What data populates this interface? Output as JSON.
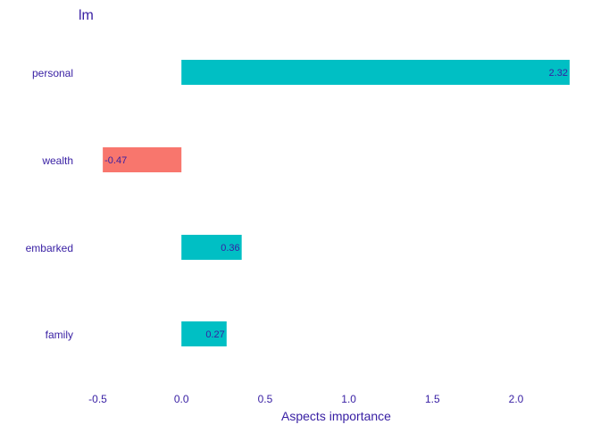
{
  "chart_data": {
    "type": "bar",
    "orientation": "horizontal",
    "title": "lm",
    "xlabel": "Aspects importance",
    "ylabel": "",
    "xlim": [
      -0.5,
      2.32
    ],
    "x_ticks": [
      -0.5,
      0.0,
      0.5,
      1.0,
      1.5,
      2.0
    ],
    "x_tick_labels": [
      "-0.5",
      "0.0",
      "0.5",
      "1.0",
      "1.5",
      "2.0"
    ],
    "grid": false,
    "categories": [
      "personal",
      "wealth",
      "embarked",
      "family"
    ],
    "values": [
      2.32,
      -0.47,
      0.36,
      0.27
    ],
    "value_labels": [
      "2.32",
      "-0.47",
      "0.36",
      "0.27"
    ],
    "colors": {
      "positive": "#00BFC4",
      "negative": "#F8766D",
      "text": "#371ea3"
    }
  }
}
